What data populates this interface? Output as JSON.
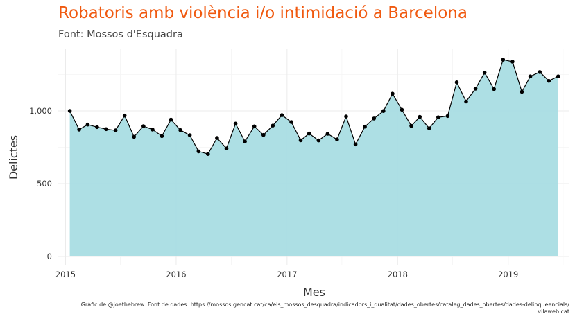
{
  "chart_data": {
    "type": "area",
    "title": "Robatoris amb violència i/o intimidació a Barcelona",
    "subtitle": "Font: Mossos d'Esquadra",
    "xlabel": "Mes",
    "ylabel": "Delictes",
    "caption_line1": "Gràfic de @joethebrew. Font de dades: https://mossos.gencat.cat/ca/els_mossos_desquadra/indicadors_i_qualitat/dades_obertes/cataleg_dades_obertes/dades-delinqueencials/",
    "caption_line2": "vilaweb.cat",
    "x_ticks": [
      "2015",
      "2016",
      "2017",
      "2018",
      "2019"
    ],
    "y_ticks": [
      "0",
      "500",
      "1,000"
    ],
    "y_tick_values": [
      0,
      500,
      1000
    ],
    "ylim": [
      0,
      1380
    ],
    "xlim": [
      "2014-12-08",
      "2019-07-22"
    ],
    "grid": true,
    "area_color": "#a9dde3",
    "line_color": "#000000",
    "x": [
      "2015-01",
      "2015-02",
      "2015-03",
      "2015-04",
      "2015-05",
      "2015-06",
      "2015-07",
      "2015-08",
      "2015-09",
      "2015-10",
      "2015-11",
      "2015-12",
      "2016-01",
      "2016-02",
      "2016-03",
      "2016-04",
      "2016-05",
      "2016-06",
      "2016-07",
      "2016-08",
      "2016-09",
      "2016-10",
      "2016-11",
      "2016-12",
      "2017-01",
      "2017-02",
      "2017-03",
      "2017-04",
      "2017-05",
      "2017-06",
      "2017-07",
      "2017-08",
      "2017-09",
      "2017-10",
      "2017-11",
      "2017-12",
      "2018-01",
      "2018-02",
      "2018-03",
      "2018-04",
      "2018-05",
      "2018-06",
      "2018-07",
      "2018-08",
      "2018-09",
      "2018-10",
      "2018-11",
      "2018-12",
      "2019-01",
      "2019-02",
      "2019-03",
      "2019-04",
      "2019-05",
      "2019-06"
    ],
    "values": [
      1000,
      872,
      906,
      889,
      875,
      866,
      968,
      822,
      895,
      872,
      827,
      940,
      868,
      833,
      722,
      704,
      814,
      742,
      913,
      790,
      894,
      835,
      899,
      971,
      924,
      798,
      845,
      797,
      843,
      804,
      962,
      770,
      892,
      948,
      999,
      1118,
      1008,
      897,
      959,
      881,
      956,
      965,
      1196,
      1065,
      1153,
      1263,
      1150,
      1352,
      1338,
      1131,
      1237,
      1267,
      1206,
      1237
    ]
  }
}
